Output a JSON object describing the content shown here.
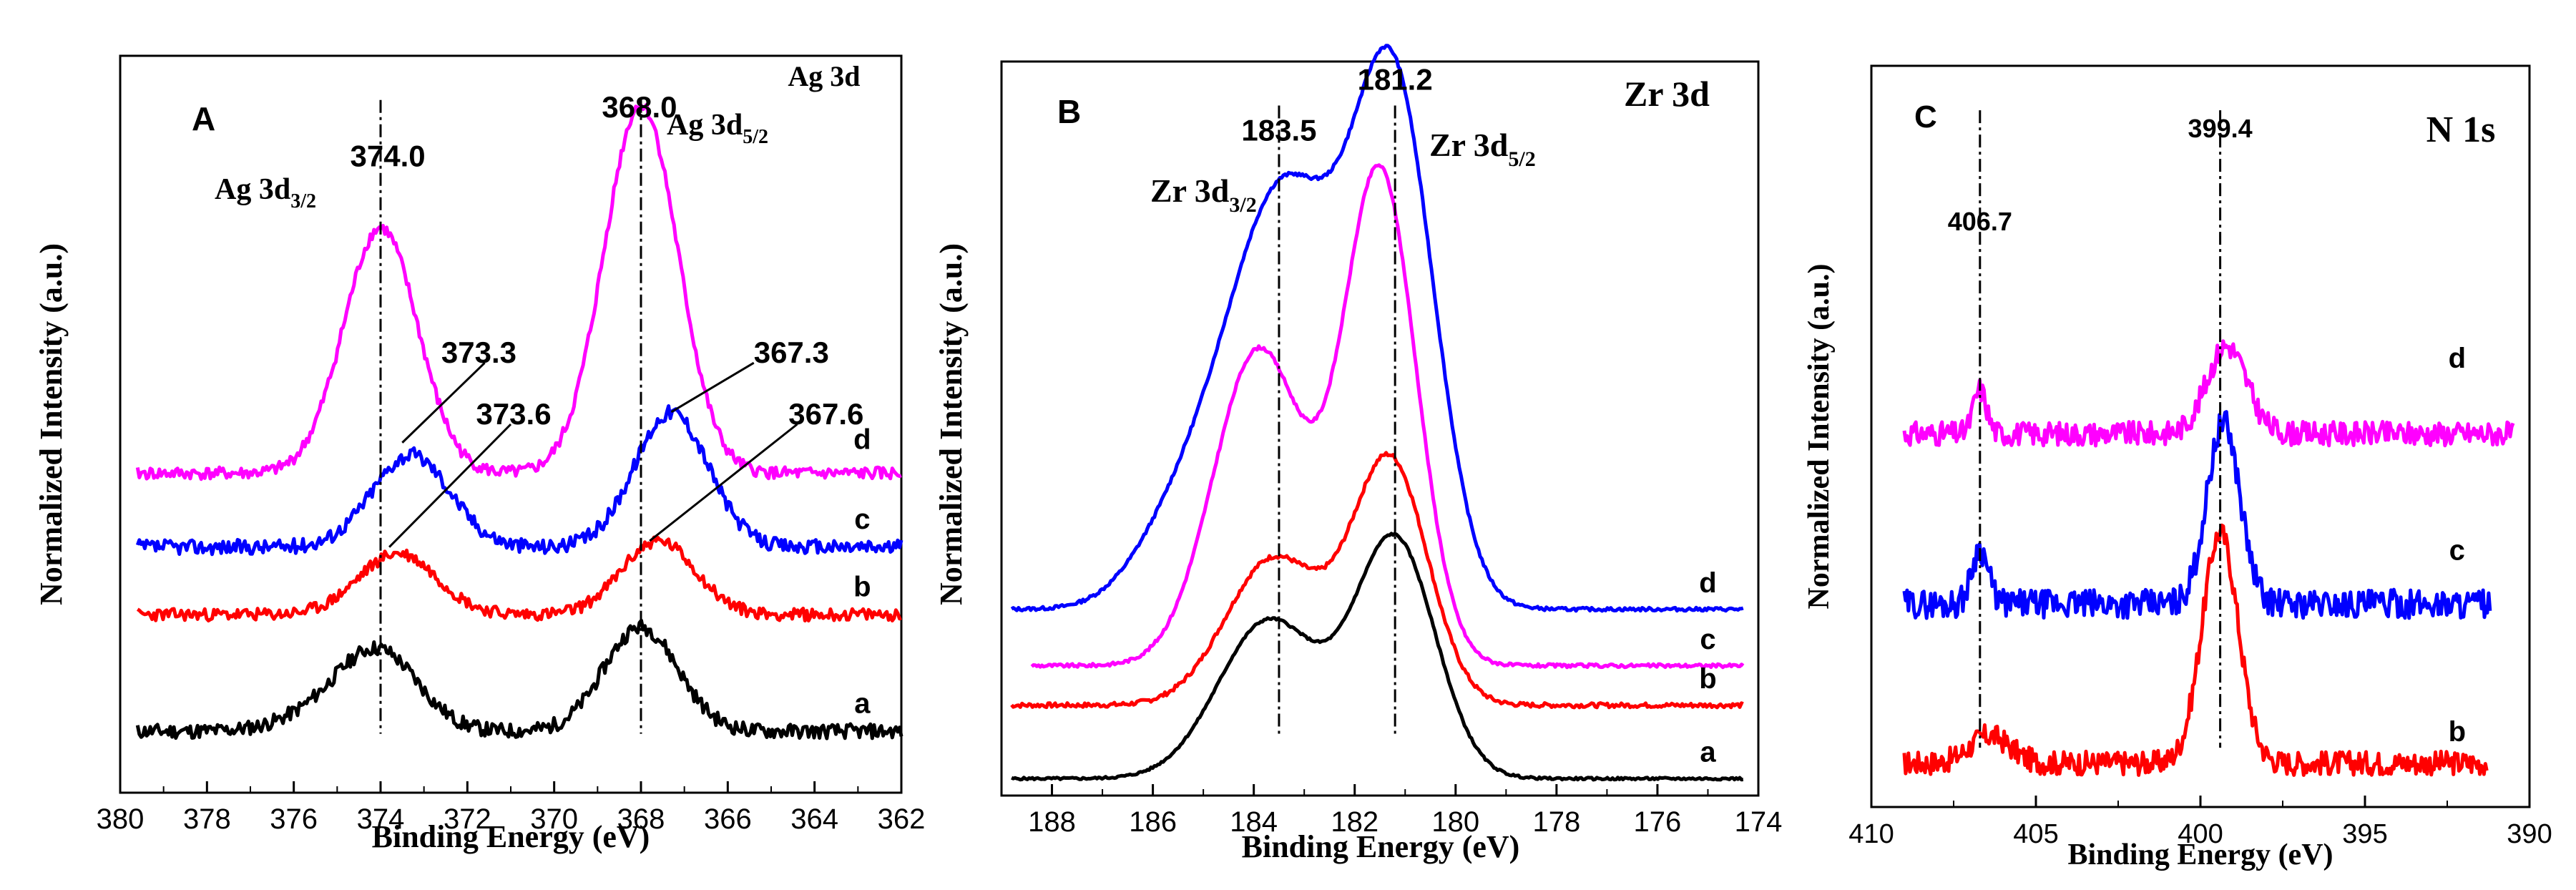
{
  "chart_data": [
    {
      "type": "line",
      "panel_label": "A",
      "title": "Ag 3d",
      "xlabel": "Binding Energy (eV)",
      "ylabel": "Normalized Intensity (a.u.)",
      "xlim": [
        380,
        362
      ],
      "xticks": [
        "380",
        "378",
        "376",
        "374",
        "372",
        "370",
        "368",
        "366",
        "364",
        "362"
      ],
      "series": [
        {
          "name": "a",
          "color": "#000000",
          "baseline": 0.1,
          "peaks": [
            {
              "center": 374.0,
              "height": 0.12,
              "width": 0.9
            },
            {
              "center": 368.0,
              "height": 0.17,
              "width": 0.85
            }
          ],
          "shoulder": [
            {
              "center": 375.2,
              "height": 0.03,
              "width": 1.0
            }
          ],
          "noise": 0.012,
          "start": 379.6,
          "end": 362.0,
          "seed": 11
        },
        {
          "name": "b",
          "color": "#ff0000",
          "baseline": 0.29,
          "peaks": [
            {
              "center": 373.6,
              "height": 0.1,
              "width": 0.9
            },
            {
              "center": 367.6,
              "height": 0.12,
              "width": 0.85
            }
          ],
          "shoulder": [],
          "noise": 0.01,
          "start": 379.6,
          "end": 362.0,
          "seed": 23
        },
        {
          "name": "c",
          "color": "#0000ff",
          "baseline": 0.4,
          "peaks": [
            {
              "center": 373.3,
              "height": 0.15,
              "width": 0.9
            },
            {
              "center": 367.3,
              "height": 0.22,
              "width": 0.85
            }
          ],
          "shoulder": [],
          "noise": 0.012,
          "start": 379.6,
          "end": 362.0,
          "seed": 37
        },
        {
          "name": "d",
          "color": "#ff00ff",
          "baseline": 0.52,
          "peaks": [
            {
              "center": 374.0,
              "height": 0.4,
              "width": 0.85
            },
            {
              "center": 368.0,
              "height": 0.6,
              "width": 0.85
            }
          ],
          "shoulder": [],
          "noise": 0.01,
          "start": 379.6,
          "end": 362.0,
          "seed": 41
        }
      ],
      "series_labels": [
        {
          "text": "a",
          "x": 362.9,
          "y": 0.13
        },
        {
          "text": "b",
          "x": 362.9,
          "y": 0.32
        },
        {
          "text": "c",
          "x": 362.9,
          "y": 0.43
        },
        {
          "text": "d",
          "x": 362.9,
          "y": 0.56
        }
      ],
      "vlines": [
        374.0,
        368.0
      ],
      "annotations": [
        {
          "text": "374.0",
          "x": 374.7,
          "y": 1.02,
          "size": 42
        },
        {
          "text": "368.0",
          "x": 368.9,
          "y": 1.1,
          "size": 42
        },
        {
          "text": "373.3",
          "x": 372.6,
          "y": 0.7,
          "size": 42
        },
        {
          "text": "373.6",
          "x": 371.8,
          "y": 0.6,
          "size": 42
        },
        {
          "text": "367.3",
          "x": 365.4,
          "y": 0.7,
          "size": 42
        },
        {
          "text": "367.6",
          "x": 364.6,
          "y": 0.6,
          "size": 42
        }
      ],
      "label_lines": [
        {
          "from": [
            373.5,
            0.57
          ],
          "to": [
            371.6,
            0.7
          ]
        },
        {
          "from": [
            373.8,
            0.4
          ],
          "to": [
            371.0,
            0.6
          ]
        },
        {
          "from": [
            367.3,
            0.62
          ],
          "to": [
            365.4,
            0.7
          ]
        },
        {
          "from": [
            367.8,
            0.41
          ],
          "to": [
            364.4,
            0.6
          ]
        }
      ],
      "peak_labels": {
        "main": "Ag 3d",
        "left_base": "Ag 3d",
        "left_sub": "3/2",
        "right_base": "Ag 3d",
        "right_sub": "5/2"
      },
      "ylim": [
        0,
        1.2
      ]
    },
    {
      "type": "line",
      "panel_label": "B",
      "title": "Zr 3d",
      "xlabel": "Binding Energy (eV)",
      "ylabel": "Normalized Intensity (a.u.)",
      "xlim": [
        189,
        174
      ],
      "xticks": [
        "188",
        "186",
        "184",
        "182",
        "180",
        "178",
        "176",
        "174"
      ],
      "series": [
        {
          "name": "a",
          "color": "#000000",
          "baseline": 0.03,
          "peaks": [
            {
              "center": 183.7,
              "height": 0.28,
              "width": 1.0
            },
            {
              "center": 181.2,
              "height": 0.42,
              "width": 0.8
            }
          ],
          "shoulder": [],
          "noise": 0.002,
          "start": 188.8,
          "end": 174.3,
          "seed": 5
        },
        {
          "name": "b",
          "color": "#ff0000",
          "baseline": 0.16,
          "peaks": [
            {
              "center": 183.6,
              "height": 0.26,
              "width": 0.95
            },
            {
              "center": 181.3,
              "height": 0.43,
              "width": 0.75
            }
          ],
          "shoulder": [],
          "noise": 0.004,
          "start": 188.8,
          "end": 174.3,
          "seed": 7
        },
        {
          "name": "c",
          "color": "#ff00ff",
          "baseline": 0.23,
          "peaks": [
            {
              "center": 183.9,
              "height": 0.56,
              "width": 0.9
            },
            {
              "center": 181.5,
              "height": 0.87,
              "width": 0.72
            }
          ],
          "shoulder": [],
          "noise": 0.003,
          "start": 188.4,
          "end": 174.3,
          "seed": 9
        },
        {
          "name": "d",
          "color": "#0000ff",
          "baseline": 0.33,
          "peaks": [
            {
              "center": 183.4,
              "height": 0.74,
              "width": 1.15
            },
            {
              "center": 181.2,
              "height": 0.86,
              "width": 0.8
            }
          ],
          "shoulder": [
            {
              "center": 185.5,
              "height": 0.12,
              "width": 0.9
            }
          ],
          "noise": 0.003,
          "start": 188.8,
          "end": 174.3,
          "seed": 13
        }
      ],
      "series_labels": [
        {
          "text": "a",
          "x": 175.0,
          "y": 0.06
        },
        {
          "text": "b",
          "x": 175.0,
          "y": 0.19
        },
        {
          "text": "c",
          "x": 175.0,
          "y": 0.26
        },
        {
          "text": "d",
          "x": 175.0,
          "y": 0.36
        }
      ],
      "vlines": [
        183.5,
        181.2
      ],
      "annotations": [
        {
          "text": "183.5",
          "x": 183.5,
          "y": 1.16,
          "size": 42,
          "anchor": "middle"
        },
        {
          "text": "181.2",
          "x": 181.2,
          "y": 1.25,
          "size": 42,
          "anchor": "middle"
        }
      ],
      "label_lines": [],
      "peak_labels": {
        "main": "Zr 3d",
        "left_base": "Zr 3d",
        "left_sub": "3/2",
        "right_base": "Zr 3d",
        "right_sub": "5/2"
      },
      "ylim": [
        0,
        1.3
      ]
    },
    {
      "type": "line",
      "panel_label": "C",
      "title": "N 1s",
      "xlabel": "Binding Energy (eV)",
      "ylabel": "Normalized Intensity (a.u.)",
      "xlim": [
        410,
        390
      ],
      "xticks": [
        "410",
        "405",
        "400",
        "395",
        "390"
      ],
      "series": [
        {
          "name": "b",
          "color": "#ff0000",
          "baseline": 0.08,
          "peaks": [
            {
              "center": 399.4,
              "height": 0.42,
              "width": 0.55
            },
            {
              "center": 406.4,
              "height": 0.05,
              "width": 0.6
            }
          ],
          "shoulder": [],
          "noise": 0.022,
          "start": 409.0,
          "end": 391.3,
          "seed": 17
        },
        {
          "name": "c",
          "color": "#0000ff",
          "baseline": 0.37,
          "peaks": [
            {
              "center": 399.3,
              "height": 0.33,
              "width": 0.5
            },
            {
              "center": 406.7,
              "height": 0.1,
              "width": 0.25
            }
          ],
          "shoulder": [],
          "noise": 0.026,
          "start": 409.0,
          "end": 391.2,
          "seed": 29
        },
        {
          "name": "d",
          "color": "#ff00ff",
          "baseline": 0.68,
          "peaks": [
            {
              "center": 399.2,
              "height": 0.16,
              "width": 0.6
            },
            {
              "center": 406.7,
              "height": 0.08,
              "width": 0.2
            }
          ],
          "shoulder": [],
          "noise": 0.022,
          "start": 409.0,
          "end": 390.5,
          "seed": 31
        }
      ],
      "series_labels": [
        {
          "text": "b",
          "x": 392.2,
          "y": 0.12
        },
        {
          "text": "c",
          "x": 392.2,
          "y": 0.45
        },
        {
          "text": "d",
          "x": 392.2,
          "y": 0.8
        }
      ],
      "vlines": [
        406.7,
        399.4
      ],
      "annotations": [
        {
          "text": "406.7",
          "x": 406.7,
          "y": 1.05,
          "size": 36,
          "anchor": "middle"
        },
        {
          "text": "399.4",
          "x": 399.4,
          "y": 1.22,
          "size": 36,
          "anchor": "middle"
        }
      ],
      "label_lines": [],
      "peak_labels": null,
      "ylim": [
        0,
        1.35
      ]
    }
  ]
}
